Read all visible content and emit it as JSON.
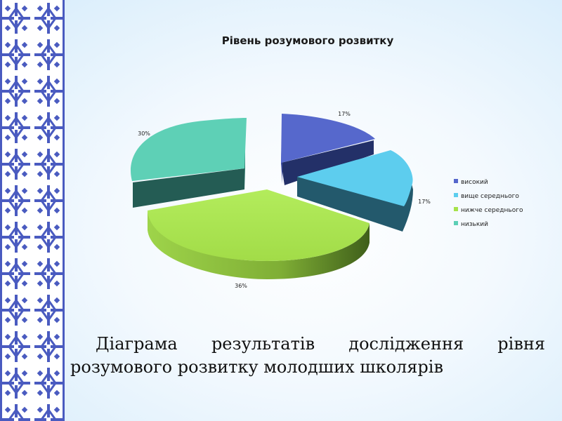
{
  "chart_data": {
    "type": "pie",
    "title": "Рівень розумового розвитку",
    "categories": [
      "високий",
      "вище середнього",
      "нижче середнього",
      "низький"
    ],
    "values": [
      17,
      17,
      36,
      30
    ],
    "data_labels": [
      "17%",
      "17%",
      "36%",
      "30%"
    ],
    "legend_position": "right",
    "exploded": true,
    "three_d": true,
    "colors": {
      "високий": "#5566cc",
      "вище середнього": "#5ccdee",
      "нижче середнього": "#a6e24a",
      "низький": "#5ccfb6"
    }
  },
  "caption": {
    "words_line1": [
      "Діаграма",
      "результатів",
      "дослідження",
      "рівня"
    ],
    "line2": "розумового розвитку молодших школярів"
  }
}
